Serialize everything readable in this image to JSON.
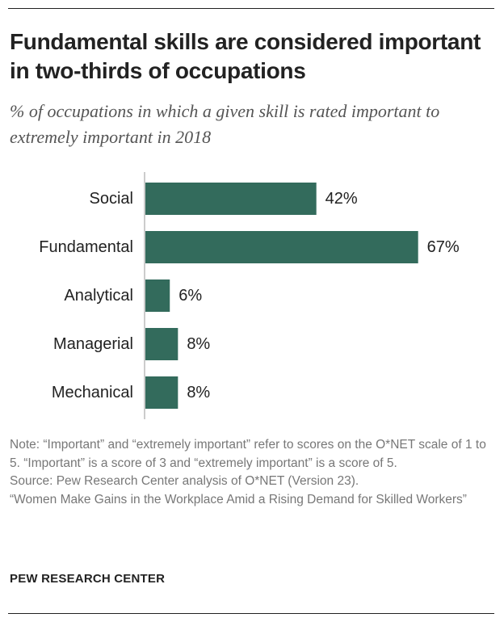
{
  "header": {
    "title": "Fundamental skills are considered important in two-thirds of occupations",
    "subtitle": "% of occupations in which a given skill is rated important to extremely important in 2018"
  },
  "chart_data": {
    "type": "bar",
    "orientation": "horizontal",
    "title": "Fundamental skills are considered important in two-thirds of occupations",
    "subtitle": "% of occupations in which a given skill is rated important to extremely important in 2018",
    "categories": [
      "Social",
      "Fundamental",
      "Analytical",
      "Managerial",
      "Mechanical"
    ],
    "values": [
      42,
      67,
      6,
      8,
      8
    ],
    "value_labels": [
      "42%",
      "67%",
      "6%",
      "8%",
      "8%"
    ],
    "xlabel": "",
    "ylabel": "",
    "xlim": [
      0,
      100
    ],
    "grid": false,
    "legend": "none",
    "bar_color": "#336b5c"
  },
  "footer": {
    "note": "Note: “Important” and “extremely important” refer to scores on the O*NET scale of 1 to 5. “Important” is a score of 3 and “extremely important” is a score of 5.",
    "source": "Source: Pew Research Center analysis of O*NET (Version 23).",
    "report": "“Women Make Gains in the Workplace Amid a Rising Demand for Skilled Workers”",
    "brand": "PEW RESEARCH CENTER"
  },
  "colors": {
    "bar": "#336b5c",
    "text": "#222222",
    "subtitle": "#555555",
    "note": "#777777",
    "axis": "#999999"
  }
}
